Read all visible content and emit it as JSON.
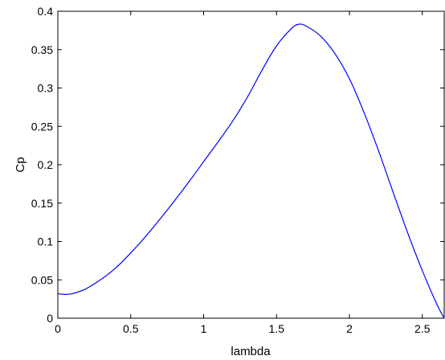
{
  "chart_data": {
    "type": "line",
    "title": "",
    "xlabel": "lambda",
    "ylabel": "Cp",
    "xlim": [
      0,
      2.65
    ],
    "ylim": [
      0,
      0.4
    ],
    "x_ticks": [
      0,
      0.5,
      1,
      1.5,
      2,
      2.5
    ],
    "x_tick_labels": [
      "0",
      "0.5",
      "1",
      "1.5",
      "2",
      "2.5"
    ],
    "y_ticks": [
      0,
      0.05,
      0.1,
      0.15,
      0.2,
      0.25,
      0.3,
      0.35,
      0.4
    ],
    "y_tick_labels": [
      "0",
      "0.05",
      "0.1",
      "0.15",
      "0.2",
      "0.25",
      "0.3",
      "0.35",
      "0.4"
    ],
    "grid": false,
    "legend": "none",
    "series": [
      {
        "color": "#0000ff",
        "x": [
          0,
          0.05,
          0.1,
          0.15,
          0.2,
          0.3,
          0.4,
          0.5,
          0.6,
          0.7,
          0.8,
          0.9,
          1.0,
          1.1,
          1.2,
          1.3,
          1.4,
          1.5,
          1.6,
          1.65,
          1.7,
          1.8,
          1.9,
          2.0,
          2.1,
          2.2,
          2.3,
          2.4,
          2.5,
          2.6,
          2.65
        ],
        "y": [
          0.032,
          0.031,
          0.032,
          0.035,
          0.039,
          0.051,
          0.066,
          0.085,
          0.106,
          0.129,
          0.153,
          0.178,
          0.204,
          0.23,
          0.257,
          0.288,
          0.323,
          0.355,
          0.377,
          0.383,
          0.381,
          0.368,
          0.345,
          0.312,
          0.268,
          0.218,
          0.164,
          0.111,
          0.062,
          0.018,
          0.0
        ]
      }
    ]
  }
}
